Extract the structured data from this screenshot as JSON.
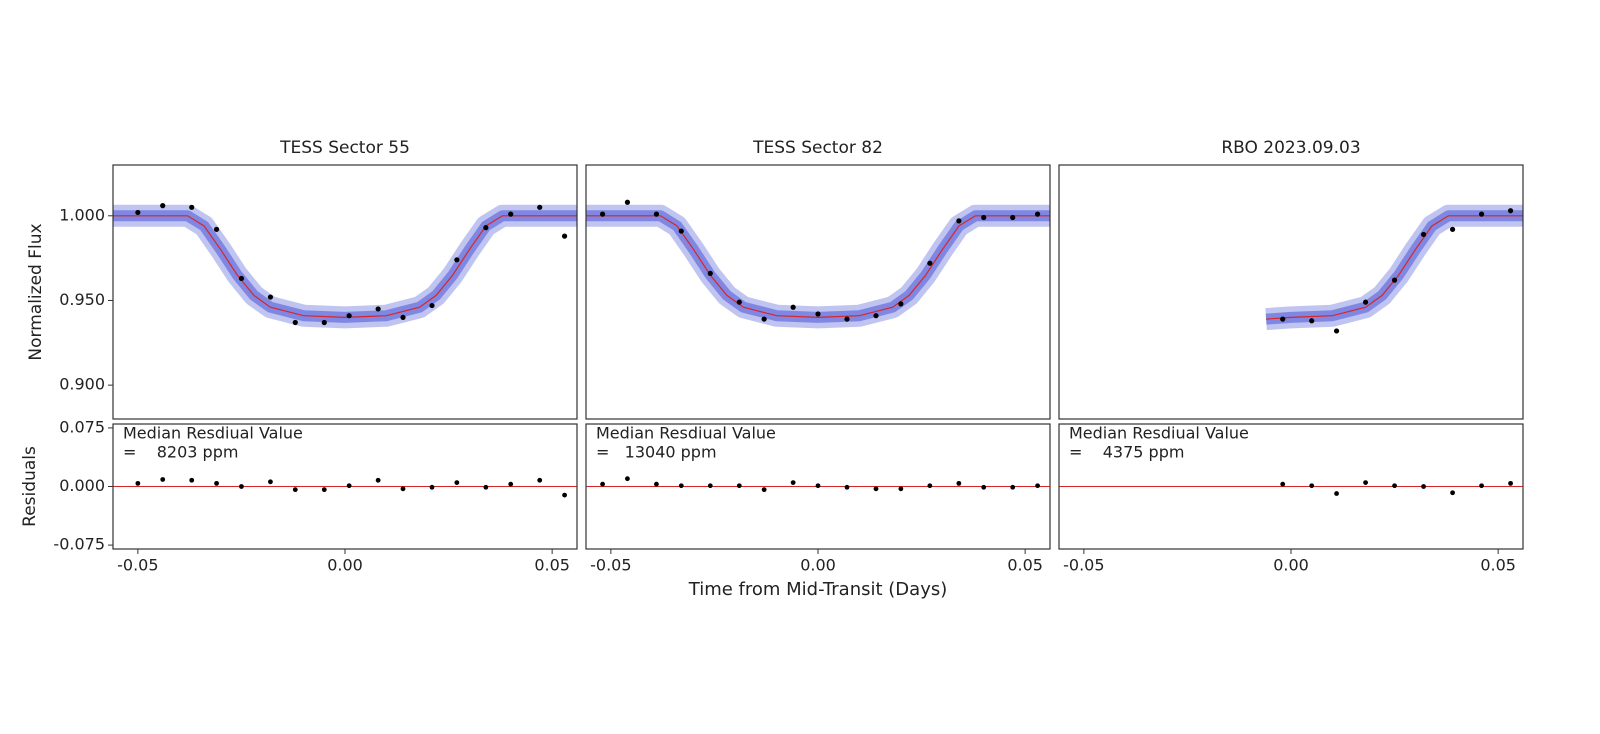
{
  "chart_data": [
    {
      "type": "scatter",
      "title": "TESS Sector 55",
      "ylabel": "Normalized Flux",
      "residual_ylabel": "Residuals",
      "xlabel": "Time from Mid-Transit (Days)",
      "xlim": [
        -0.056,
        0.056
      ],
      "xticks": [
        {
          "value": -0.05,
          "label": "-0.05"
        },
        {
          "value": 0,
          "label": "0.00"
        },
        {
          "value": 0.05,
          "label": "0.05"
        }
      ],
      "ylim": [
        0.88,
        1.03
      ],
      "yticks": [
        {
          "value": 0.9,
          "label": "0.900"
        },
        {
          "value": 0.95,
          "label": "0.950"
        },
        {
          "value": 1.0,
          "label": "1.000"
        }
      ],
      "points": {
        "color": "#000000",
        "x": [
          -0.05,
          -0.044,
          -0.037,
          -0.031,
          -0.025,
          -0.018,
          -0.012,
          -0.005,
          0.001,
          0.008,
          0.014,
          0.021,
          0.027,
          0.034,
          0.04,
          0.047,
          0.053
        ],
        "values": [
          1.002,
          1.006,
          1.005,
          0.992,
          0.963,
          0.952,
          0.937,
          0.937,
          0.941,
          0.945,
          0.94,
          0.947,
          0.974,
          0.993,
          1.001,
          1.005,
          0.988
        ]
      },
      "model": {
        "color": "#d62728",
        "band_color": "#4b55d6",
        "x": [
          -0.056,
          -0.038,
          -0.034,
          -0.03,
          -0.026,
          -0.022,
          -0.018,
          -0.01,
          0,
          0.01,
          0.018,
          0.022,
          0.026,
          0.03,
          0.034,
          0.038,
          0.056
        ],
        "values": [
          1.0,
          1.0,
          0.994,
          0.98,
          0.965,
          0.953,
          0.946,
          0.941,
          0.94,
          0.941,
          0.946,
          0.953,
          0.965,
          0.98,
          0.994,
          1.0,
          1.0
        ]
      },
      "residuals": {
        "ylim": [
          -0.08,
          0.08
        ],
        "yticks": [
          {
            "value": -0.075,
            "label": "-0.075"
          },
          {
            "value": 0,
            "label": "0.000"
          },
          {
            "value": 0.075,
            "label": "0.075"
          }
        ],
        "values": [
          0.004,
          0.009,
          0.008,
          0.004,
          0,
          0.006,
          -0.004,
          -0.004,
          0.001,
          0.008,
          -0.003,
          -0.001,
          0.005,
          -0.001,
          0.003,
          0.008,
          -0.011
        ],
        "annotation": [
          "Median Resdiual Value",
          "=    8203 ppm"
        ]
      }
    },
    {
      "type": "scatter",
      "title": "TESS Sector 82",
      "xlim": [
        -0.056,
        0.056
      ],
      "xticks": [
        {
          "value": -0.05,
          "label": "-0.05"
        },
        {
          "value": 0,
          "label": "0.00"
        },
        {
          "value": 0.05,
          "label": "0.05"
        }
      ],
      "ylim": [
        0.88,
        1.03
      ],
      "points": {
        "color": "#000000",
        "x": [
          -0.052,
          -0.046,
          -0.039,
          -0.033,
          -0.026,
          -0.019,
          -0.013,
          -0.006,
          0.0,
          0.007,
          0.014,
          0.02,
          0.027,
          0.034,
          0.04,
          0.047,
          0.053
        ],
        "values": [
          1.001,
          1.008,
          1.001,
          0.991,
          0.966,
          0.949,
          0.939,
          0.946,
          0.942,
          0.939,
          0.941,
          0.948,
          0.972,
          0.997,
          0.999,
          0.999,
          1.001
        ]
      },
      "model": {
        "color": "#d62728",
        "band_color": "#4b55d6",
        "x": [
          -0.056,
          -0.038,
          -0.034,
          -0.03,
          -0.026,
          -0.022,
          -0.018,
          -0.01,
          0,
          0.01,
          0.018,
          0.022,
          0.026,
          0.03,
          0.034,
          0.038,
          0.056
        ],
        "values": [
          1.0,
          1.0,
          0.994,
          0.98,
          0.965,
          0.953,
          0.946,
          0.941,
          0.94,
          0.941,
          0.946,
          0.953,
          0.965,
          0.98,
          0.994,
          1.0,
          1.0
        ]
      },
      "residuals": {
        "ylim": [
          -0.08,
          0.08
        ],
        "values": [
          0.003,
          0.01,
          0.003,
          0.001,
          0.001,
          0.001,
          -0.004,
          0.005,
          0.001,
          -0.001,
          -0.003,
          -0.003,
          0.001,
          0.004,
          -0.001,
          -0.001,
          0.001
        ],
        "annotation": [
          "Median Resdiual Value",
          "=   13040 ppm"
        ]
      }
    },
    {
      "type": "scatter",
      "title": "RBO 2023.09.03",
      "xlim": [
        -0.056,
        0.056
      ],
      "xticks": [
        {
          "value": -0.05,
          "label": "-0.05"
        },
        {
          "value": 0,
          "label": "0.00"
        },
        {
          "value": 0.05,
          "label": "0.05"
        }
      ],
      "ylim": [
        0.88,
        1.03
      ],
      "points": {
        "color": "#000000",
        "x": [
          -0.002,
          0.005,
          0.011,
          0.018,
          0.025,
          0.032,
          0.039,
          0.046,
          0.053
        ],
        "values": [
          0.939,
          0.938,
          0.932,
          0.949,
          0.962,
          0.989,
          0.992,
          1.001,
          1.003
        ]
      },
      "model": {
        "color": "#d62728",
        "band_color": "#4b55d6",
        "x": [
          -0.006,
          0,
          0.01,
          0.018,
          0.022,
          0.026,
          0.03,
          0.034,
          0.038,
          0.056
        ],
        "values": [
          0.939,
          0.94,
          0.941,
          0.946,
          0.953,
          0.965,
          0.98,
          0.994,
          1.0,
          1.0
        ]
      },
      "residuals": {
        "ylim": [
          -0.08,
          0.08
        ],
        "values": [
          0.003,
          0.001,
          -0.009,
          0.005,
          0.001,
          0,
          -0.008,
          0.001,
          0.004
        ],
        "annotation": [
          "Median Resdiual Value",
          "=    4375 ppm"
        ]
      }
    }
  ]
}
